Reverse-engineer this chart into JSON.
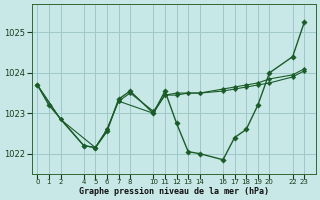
{
  "xlabel": "Graphe pression niveau de la mer (hPa)",
  "background_color": "#c8e8e8",
  "grid_color": "#a0c8c8",
  "line_color": "#1a5c28",
  "x_ticks": [
    0,
    1,
    2,
    4,
    5,
    6,
    7,
    8,
    10,
    11,
    12,
    13,
    14,
    16,
    17,
    18,
    19,
    20,
    22,
    23
  ],
  "xlim": [
    -0.5,
    24.0
  ],
  "ylim": [
    1021.5,
    1025.7
  ],
  "yticks": [
    1022,
    1023,
    1024,
    1025
  ],
  "line1_x": [
    0,
    1,
    4,
    5,
    6,
    7,
    8,
    10,
    11,
    12,
    13,
    14,
    16,
    17,
    18,
    19,
    20,
    22,
    23
  ],
  "line1_y": [
    1023.7,
    1023.2,
    1022.2,
    1022.15,
    1022.55,
    1023.35,
    1023.55,
    1023.0,
    1023.55,
    1022.75,
    1022.05,
    1022.0,
    1021.85,
    1022.4,
    1022.6,
    1023.2,
    1024.0,
    1024.4,
    1025.25
  ],
  "line2_x": [
    0,
    2,
    4,
    5,
    6,
    7,
    10,
    11,
    12,
    13,
    14,
    16,
    17,
    18,
    19,
    20,
    22,
    23
  ],
  "line2_y": [
    1023.7,
    1022.85,
    1022.2,
    1022.15,
    1022.6,
    1023.3,
    1023.0,
    1023.45,
    1023.5,
    1023.5,
    1023.5,
    1023.55,
    1023.6,
    1023.65,
    1023.7,
    1023.75,
    1023.9,
    1024.05
  ],
  "line3_x": [
    0,
    2,
    5,
    6,
    7,
    8,
    10,
    11,
    12,
    13,
    14,
    16,
    17,
    18,
    19,
    20,
    22,
    23
  ],
  "line3_y": [
    1023.7,
    1022.85,
    1022.15,
    1022.6,
    1023.3,
    1023.5,
    1023.05,
    1023.45,
    1023.45,
    1023.5,
    1023.5,
    1023.6,
    1023.65,
    1023.7,
    1023.75,
    1023.85,
    1023.95,
    1024.1
  ]
}
